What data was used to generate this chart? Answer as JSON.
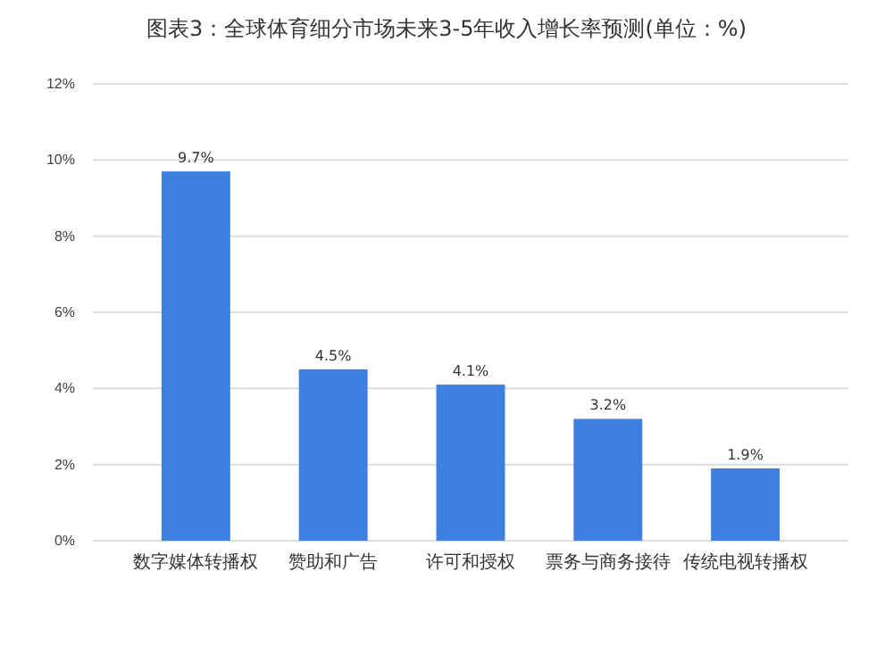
{
  "chart_data": {
    "type": "bar",
    "title": "图表3：全球体育细分市场未来3-5年收入增长率预测(单位：%)",
    "categories": [
      "数字媒体转播权",
      "赞助和广告",
      "许可和授权",
      "票务与商务接待",
      "传统电视转播权"
    ],
    "values": [
      9.7,
      4.5,
      4.1,
      3.2,
      1.9
    ],
    "value_labels": [
      "9.7%",
      "4.5%",
      "4.1%",
      "3.2%",
      "1.9%"
    ],
    "color": "#3f7fe0",
    "ylim": [
      0,
      12
    ],
    "yticks": [
      {
        "value": 0,
        "label": "0%"
      },
      {
        "value": 2,
        "label": "2%"
      },
      {
        "value": 4,
        "label": "4%"
      },
      {
        "value": 6,
        "label": "6%"
      },
      {
        "value": 8,
        "label": "8%"
      },
      {
        "value": 10,
        "label": "10%"
      },
      {
        "value": 12,
        "label": "12%"
      }
    ],
    "grid": "y"
  }
}
